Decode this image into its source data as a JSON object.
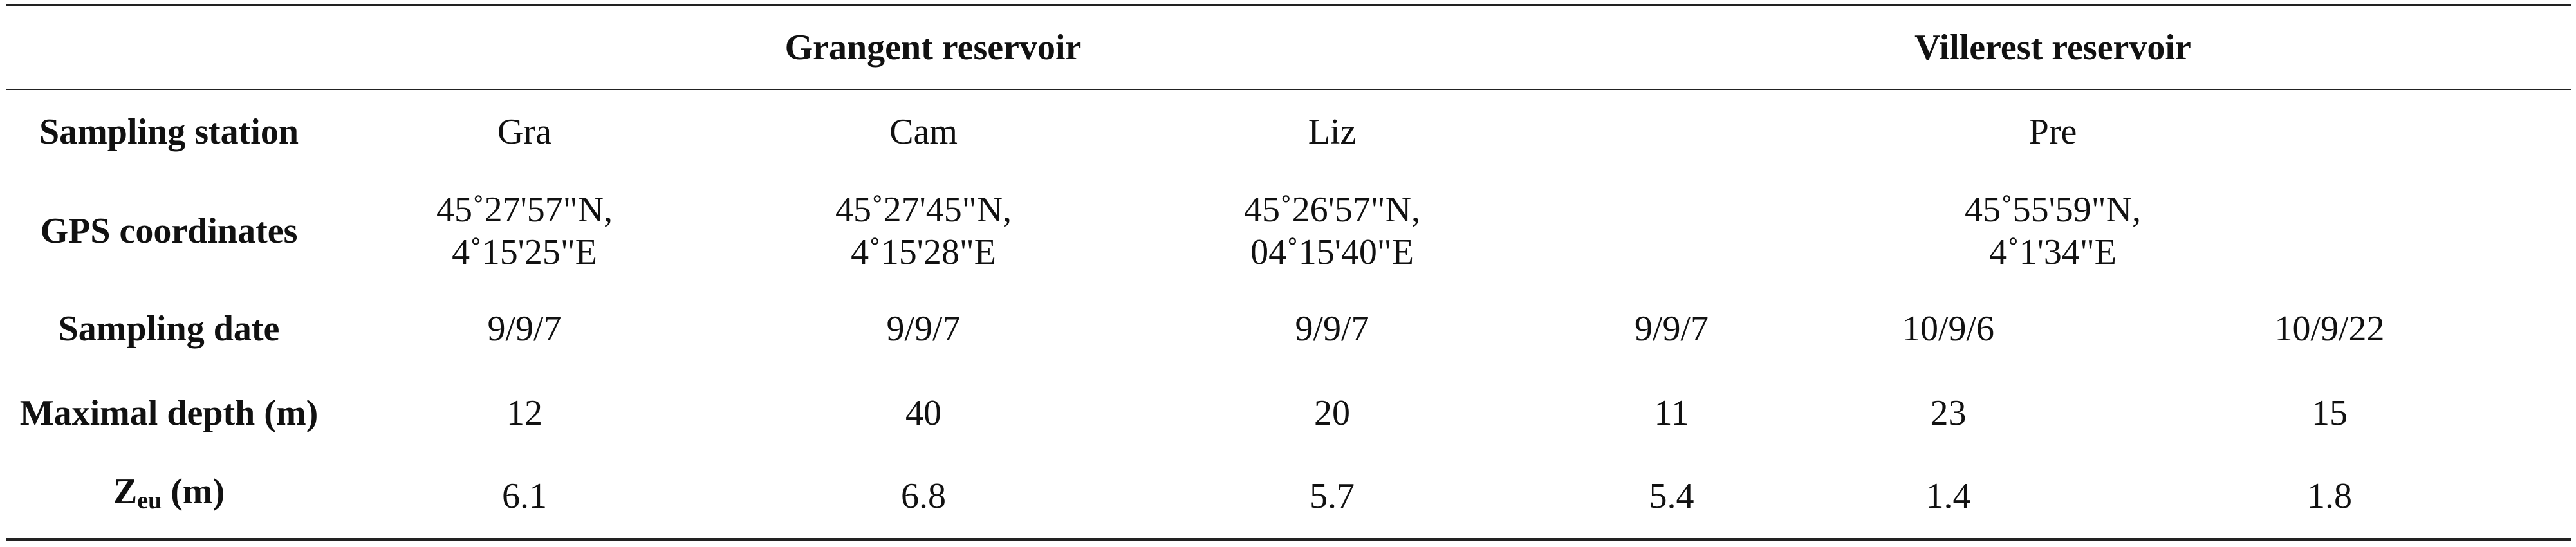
{
  "groups": {
    "grangent": "Grangent reservoir",
    "villerest": "Villerest reservoir"
  },
  "rows": {
    "station": {
      "label": "Sampling station",
      "gra": "Gra",
      "cam": "Cam",
      "liz": "Liz",
      "pre": "Pre"
    },
    "gps": {
      "label": "GPS coordinates",
      "gra": [
        "45˚27'57\"N,",
        "4˚15'25\"E"
      ],
      "cam": [
        "45˚27'45\"N,",
        "4˚15'28\"E"
      ],
      "liz": [
        "45˚26'57\"N,",
        "04˚15'40\"E"
      ],
      "pre": [
        "45˚55'59\"N,",
        "4˚1'34\"E"
      ]
    },
    "date": {
      "label": "Sampling date",
      "values": [
        "9/9/7",
        "9/9/7",
        "9/9/7",
        "9/9/7",
        "10/9/6",
        "10/9/22"
      ]
    },
    "depth": {
      "label": "Maximal depth (m)",
      "values": [
        "12",
        "40",
        "20",
        "11",
        "23",
        "15"
      ]
    },
    "zeu": {
      "label_main": "Z",
      "label_sub": "eu",
      "label_unit": " (m)",
      "values": [
        "6.1",
        "6.8",
        "5.7",
        "5.4",
        "1.4",
        "1.8"
      ]
    }
  }
}
